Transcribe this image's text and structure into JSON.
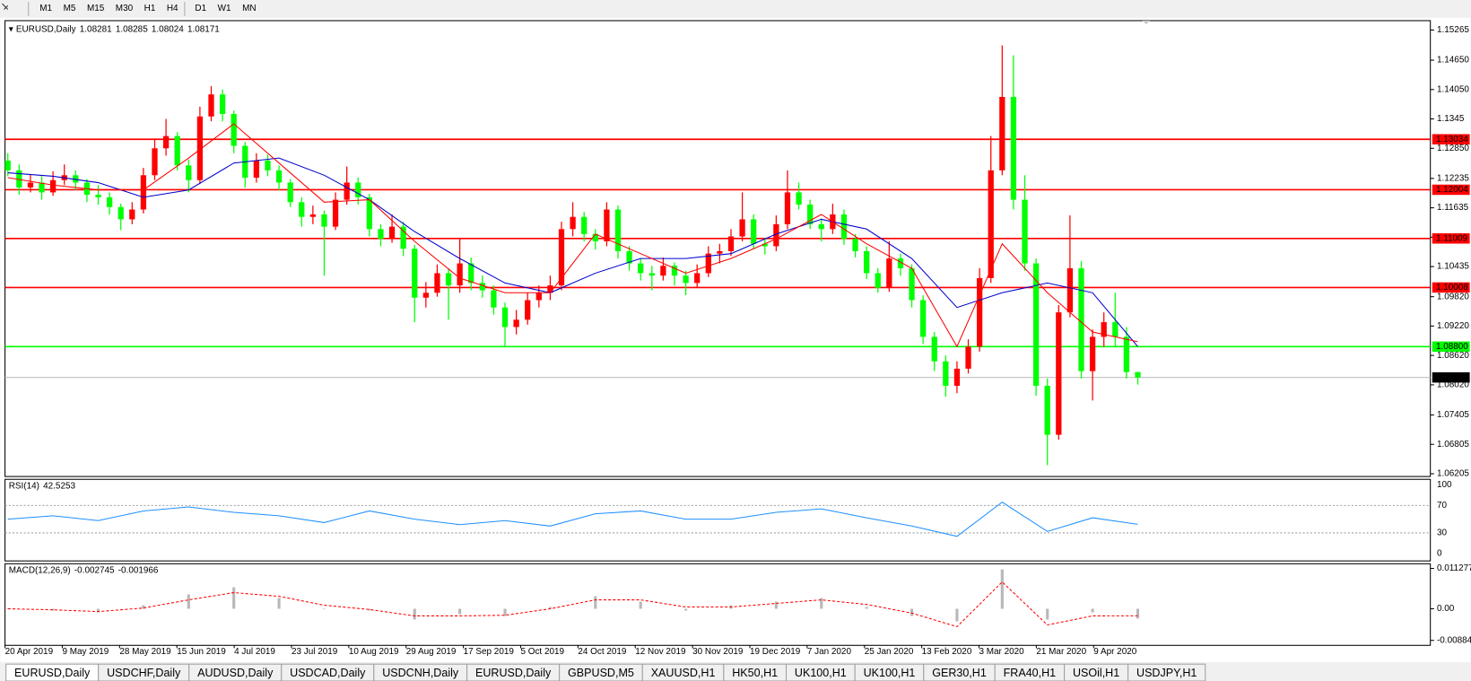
{
  "toolbar": {
    "timeframes": [
      "M1",
      "M5",
      "M15",
      "M30",
      "H1",
      "H4",
      "D1",
      "W1",
      "MN"
    ]
  },
  "chart_data": {
    "type": "candlestick",
    "title": "EURUSD,Daily",
    "up_color": "#ff0000",
    "down_color": "#00ff00",
    "ylim": [
      1.06148,
      1.15457
    ],
    "yticks": [
      1.15265,
      {
        "value": 1.1465,
        "label": "1.14650"
      },
      {
        "value": 1.1405,
        "label": "1.14050"
      },
      1.1345,
      {
        "value": 1.1285,
        "label": "1.12850"
      },
      1.12235,
      1.11635,
      1.11035,
      1.10435,
      {
        "value": 1.0982,
        "label": "1.09820"
      },
      {
        "value": 1.0922,
        "label": "1.09220"
      },
      {
        "value": 1.0862,
        "label": "1.08620"
      },
      {
        "value": 1.0802,
        "label": "1.08020"
      },
      1.07405,
      1.06805,
      1.06205
    ],
    "levels": [
      {
        "value": 1.13034,
        "color": "#ff0000"
      },
      {
        "value": 1.12004,
        "color": "#ff0000"
      },
      {
        "value": 1.11009,
        "color": "#ff0000"
      },
      {
        "value": 1.10008,
        "color": "#ff0000"
      },
      {
        "value": 1.088,
        "label": "1.08800",
        "color": "#00ff00"
      }
    ],
    "dates": [
      "20 Apr 2019",
      "9 May 2019",
      "28 May 2019",
      "15 Jun 2019",
      "4 Jul 2019",
      "23 Jul 2019",
      "10 Aug 2019",
      "29 Aug 2019",
      "17 Sep 2019",
      "5 Oct 2019",
      "24 Oct 2019",
      "12 Nov 2019",
      "30 Nov 2019",
      "19 Dec 2019",
      "7 Jan 2020",
      "25 Jan 2020",
      "13 Feb 2020",
      "3 Mar 2020",
      "21 Mar 2020",
      "9 Apr 2020"
    ],
    "candles": [
      [
        1.126,
        1.1275,
        1.1228,
        1.124
      ],
      [
        1.124,
        1.1252,
        1.119,
        1.1205
      ],
      [
        1.1205,
        1.1232,
        1.1195,
        1.1215
      ],
      [
        1.1215,
        1.1228,
        1.118,
        1.1195
      ],
      [
        1.1195,
        1.1238,
        1.1188,
        1.122
      ],
      [
        1.122,
        1.1252,
        1.121,
        1.123
      ],
      [
        1.123,
        1.124,
        1.12,
        1.1215
      ],
      [
        1.1215,
        1.1222,
        1.1175,
        1.119
      ],
      [
        1.119,
        1.121,
        1.117,
        1.1185
      ],
      [
        1.1185,
        1.1195,
        1.115,
        1.1165
      ],
      [
        1.1165,
        1.1172,
        1.1118,
        1.114
      ],
      [
        1.114,
        1.1175,
        1.113,
        1.116
      ],
      [
        1.116,
        1.1245,
        1.1152,
        1.123
      ],
      [
        1.123,
        1.1305,
        1.122,
        1.1285
      ],
      [
        1.1285,
        1.1345,
        1.127,
        1.131
      ],
      [
        1.131,
        1.1318,
        1.124,
        1.125
      ],
      [
        1.125,
        1.1262,
        1.1195,
        1.122
      ],
      [
        1.122,
        1.137,
        1.1212,
        1.135
      ],
      [
        1.135,
        1.1412,
        1.134,
        1.1395
      ],
      [
        1.1395,
        1.1405,
        1.134,
        1.1355
      ],
      [
        1.1355,
        1.1362,
        1.1275,
        1.129
      ],
      [
        1.129,
        1.1298,
        1.1205,
        1.1225
      ],
      [
        1.1225,
        1.1275,
        1.1215,
        1.126
      ],
      [
        1.126,
        1.1272,
        1.1228,
        1.124
      ],
      [
        1.124,
        1.125,
        1.12,
        1.1215
      ],
      [
        1.1215,
        1.1222,
        1.1165,
        1.1175
      ],
      [
        1.1175,
        1.1185,
        1.1125,
        1.1145
      ],
      [
        1.1145,
        1.1168,
        1.113,
        1.115
      ],
      [
        1.115,
        1.1158,
        1.1025,
        1.1125
      ],
      [
        1.1125,
        1.1195,
        1.1118,
        1.118
      ],
      [
        1.118,
        1.1248,
        1.117,
        1.1215
      ],
      [
        1.1215,
        1.1225,
        1.117,
        1.1185
      ],
      [
        1.1185,
        1.1192,
        1.1105,
        1.112
      ],
      [
        1.112,
        1.113,
        1.1085,
        1.11
      ],
      [
        1.11,
        1.115,
        1.1092,
        1.1125
      ],
      [
        1.1125,
        1.1135,
        1.1065,
        1.108
      ],
      [
        1.108,
        1.1088,
        1.093,
        1.098
      ],
      [
        1.098,
        1.1012,
        1.096,
        1.099
      ],
      [
        1.099,
        1.1048,
        1.0982,
        1.103
      ],
      [
        1.103,
        1.104,
        1.0935,
        1.1005
      ],
      [
        1.1005,
        1.11,
        1.099,
        1.105
      ],
      [
        1.105,
        1.1062,
        1.0995,
        1.101
      ],
      [
        1.101,
        1.1025,
        1.098,
        1.0995
      ],
      [
        1.0995,
        1.1005,
        1.0945,
        1.096
      ],
      [
        1.096,
        1.097,
        1.088,
        1.092
      ],
      [
        1.092,
        1.0955,
        1.0905,
        1.0935
      ],
      [
        1.0935,
        1.099,
        1.0925,
        1.0975
      ],
      [
        1.0975,
        1.1005,
        1.096,
        1.099
      ],
      [
        1.099,
        1.1025,
        1.0975,
        1.1005
      ],
      [
        1.1005,
        1.1135,
        1.0995,
        1.112
      ],
      [
        1.112,
        1.1175,
        1.1105,
        1.1145
      ],
      [
        1.1145,
        1.1155,
        1.1095,
        1.111
      ],
      [
        1.111,
        1.112,
        1.1078,
        1.1095
      ],
      [
        1.1095,
        1.1175,
        1.1085,
        1.116
      ],
      [
        1.116,
        1.1168,
        1.106,
        1.1075
      ],
      [
        1.1075,
        1.1085,
        1.1035,
        1.105
      ],
      [
        1.105,
        1.106,
        1.1015,
        1.103
      ],
      [
        1.103,
        1.1045,
        1.0995,
        1.1025
      ],
      [
        1.1025,
        1.1062,
        1.1015,
        1.1045
      ],
      [
        1.1045,
        1.1052,
        1.1005,
        1.1025
      ],
      [
        1.1025,
        1.1035,
        1.0985,
        1.101
      ],
      [
        1.101,
        1.1048,
        1.1,
        1.103
      ],
      [
        1.103,
        1.1085,
        1.1022,
        1.107
      ],
      [
        1.107,
        1.109,
        1.105,
        1.1075
      ],
      [
        1.1075,
        1.112,
        1.1065,
        1.1105
      ],
      [
        1.1105,
        1.1195,
        1.1095,
        1.114
      ],
      [
        1.114,
        1.115,
        1.108,
        1.109
      ],
      [
        1.109,
        1.1102,
        1.1068,
        1.1085
      ],
      [
        1.1085,
        1.1148,
        1.1075,
        1.113
      ],
      [
        1.113,
        1.124,
        1.112,
        1.1195
      ],
      [
        1.1195,
        1.1215,
        1.116,
        1.117
      ],
      [
        1.117,
        1.118,
        1.112,
        1.113
      ],
      [
        1.113,
        1.1142,
        1.1095,
        1.112
      ],
      [
        1.112,
        1.1172,
        1.111,
        1.115
      ],
      [
        1.115,
        1.116,
        1.1088,
        1.11
      ],
      [
        1.11,
        1.111,
        1.1062,
        1.1075
      ],
      [
        1.1075,
        1.1085,
        1.1018,
        1.103
      ],
      [
        1.103,
        1.104,
        1.099,
        1.1
      ],
      [
        1.1,
        1.1095,
        1.0992,
        1.106
      ],
      [
        1.106,
        1.107,
        1.1025,
        1.104
      ],
      [
        1.104,
        1.1048,
        1.096,
        1.0975
      ],
      [
        1.0975,
        1.0985,
        1.0885,
        1.09
      ],
      [
        1.09,
        1.091,
        1.083,
        1.085
      ],
      [
        1.085,
        1.0862,
        1.0778,
        1.08
      ],
      [
        1.08,
        1.085,
        1.0785,
        1.0835
      ],
      [
        1.0835,
        1.0895,
        1.0825,
        1.088
      ],
      [
        1.088,
        1.104,
        1.087,
        1.102
      ],
      [
        1.102,
        1.131,
        1.101,
        1.124
      ],
      [
        1.124,
        1.1495,
        1.123,
        1.139
      ],
      [
        1.139,
        1.1475,
        1.116,
        1.118
      ],
      [
        1.118,
        1.123,
        1.1035,
        1.105
      ],
      [
        1.105,
        1.106,
        1.078,
        1.08
      ],
      [
        1.08,
        1.0815,
        1.0638,
        1.07
      ],
      [
        1.07,
        1.0965,
        1.069,
        1.095
      ],
      [
        1.095,
        1.1148,
        1.094,
        1.104
      ],
      [
        1.104,
        1.1055,
        1.0815,
        1.083
      ],
      [
        1.083,
        1.0915,
        1.077,
        1.09
      ],
      [
        1.09,
        1.095,
        1.088,
        1.093
      ],
      [
        1.093,
        1.099,
        1.088,
        1.09
      ],
      [
        1.09,
        1.092,
        1.0815,
        1.0828
      ],
      [
        1.08281,
        1.08285,
        1.08024,
        1.08171
      ]
    ],
    "moving_averages": [
      {
        "color": "#0000cc",
        "values": [
          1.1235,
          1.1228,
          1.1215,
          1.1185,
          1.12,
          1.1255,
          1.1265,
          1.123,
          1.118,
          1.1115,
          1.106,
          1.101,
          1.099,
          1.103,
          1.106,
          1.106,
          1.107,
          1.111,
          1.114,
          1.112,
          1.106,
          1.096,
          1.099,
          1.101,
          1.099,
          1.088
        ]
      },
      {
        "color": "#ff0000",
        "values": [
          1.1225,
          1.121,
          1.12,
          1.12,
          1.1265,
          1.1335,
          1.1255,
          1.1175,
          1.118,
          1.1095,
          1.102,
          1.099,
          1.099,
          1.111,
          1.107,
          1.103,
          1.106,
          1.11,
          1.115,
          1.109,
          1.104,
          1.088,
          1.109,
          1.099,
          1.091,
          1.089
        ]
      }
    ],
    "rsi": {
      "name": "RSI(14)",
      "color": "#1e90ff",
      "ylim": [
        0,
        100
      ],
      "yticks": [
        100,
        70,
        30,
        0
      ],
      "values": [
        50,
        55,
        48,
        62,
        68,
        60,
        55,
        45,
        62,
        50,
        42,
        48,
        40,
        58,
        62,
        50,
        50,
        60,
        65,
        52,
        40,
        25,
        75,
        32,
        52,
        42.5253
      ]
    },
    "macd": {
      "name": "MACD(12,26,9)",
      "ylim": [
        -0.010228,
        0.012588
      ],
      "yticks": [
        0.011277,
        {
          "value": 0,
          "label": "0.00"
        },
        -0.008845
      ],
      "histogram_color": "#b8b8b8",
      "signal_color": "#ff0000",
      "histogram": [
        0.0,
        -0.0005,
        -0.001,
        0.001,
        0.004,
        0.006,
        0.003,
        0.0,
        -0.0005,
        -0.003,
        -0.0015,
        -0.002,
        0.0005,
        0.0035,
        0.002,
        -0.0005,
        0.001,
        0.002,
        0.003,
        0.0005,
        -0.002,
        -0.0035,
        0.011,
        -0.003,
        -0.001,
        -0.002745
      ],
      "signal": [
        0.0,
        -0.0003,
        -0.0008,
        0.0002,
        0.0025,
        0.0045,
        0.0035,
        0.001,
        -0.0002,
        -0.002,
        -0.002,
        -0.0018,
        0.0,
        0.0025,
        0.0025,
        0.0005,
        0.0005,
        0.0015,
        0.0025,
        0.0012,
        -0.0012,
        -0.005,
        0.0075,
        -0.0045,
        -0.002,
        -0.001966
      ]
    }
  },
  "tabs": [
    "EURUSD,Daily",
    "USDCHF,Daily",
    "AUDUSD,Daily",
    "USDCAD,Daily",
    "USDCNH,Daily",
    "EURUSD,Daily",
    "GBPUSD,M5",
    "XAUUSD,H1",
    "HK50,H1",
    "UK100,H1",
    "UK100,H1",
    "GER30,H1",
    "FRA40,H1",
    "USOil,H1",
    "USDJPY,H1"
  ]
}
